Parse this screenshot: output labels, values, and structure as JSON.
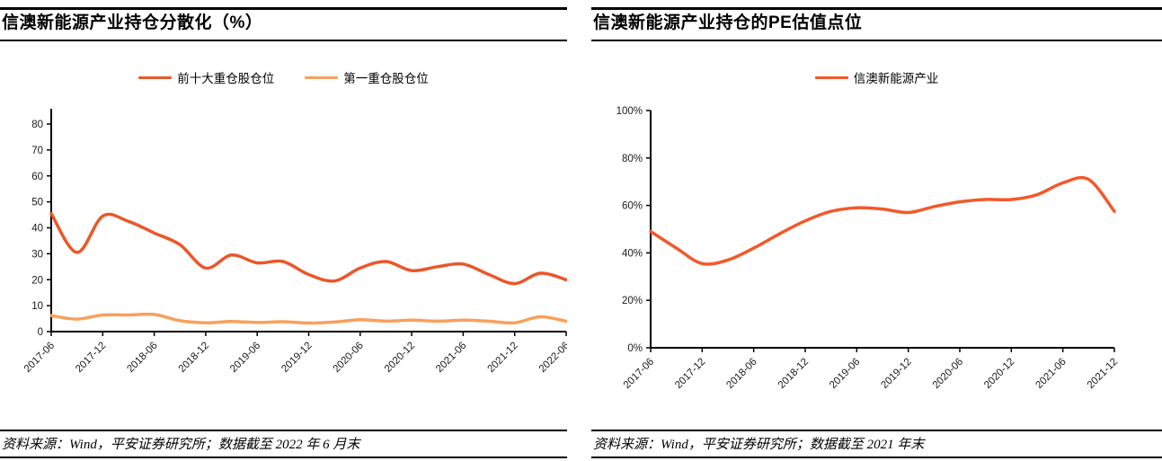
{
  "panels": [
    {
      "source": "资料来源：Wind，平安证券研究所；数据截至 2022 年 6 月末"
    },
    {
      "source": "资料来源：Wind，平安证券研究所；数据截至 2021 年末"
    }
  ],
  "chart_data": [
    {
      "type": "line",
      "title": "信澳新能源产业持仓分散化（%）",
      "categories": [
        "2017-06",
        "2017-09",
        "2017-12",
        "2018-03",
        "2018-06",
        "2018-09",
        "2018-12",
        "2019-03",
        "2019-06",
        "2019-09",
        "2019-12",
        "2020-03",
        "2020-06",
        "2020-09",
        "2020-12",
        "2021-03",
        "2021-06",
        "2021-09",
        "2021-12",
        "2022-03",
        "2022-06"
      ],
      "series": [
        {
          "name": "前十大重仓股仓位",
          "color": "#EA572B",
          "values": [
            45.5,
            30.5,
            44.5,
            42.5,
            38,
            33.5,
            24.5,
            29.5,
            26.5,
            27,
            22,
            19.5,
            24.5,
            27,
            23.5,
            25,
            26,
            22,
            18.5,
            22.5,
            20
          ]
        },
        {
          "name": "第一重仓股仓位",
          "color": "#F9A05B",
          "values": [
            6.2,
            4.8,
            6.4,
            6.4,
            6.6,
            4.2,
            3.4,
            3.9,
            3.5,
            3.8,
            3.3,
            3.7,
            4.6,
            4.0,
            4.4,
            4.0,
            4.4,
            4.0,
            3.4,
            5.7,
            4.0
          ]
        }
      ],
      "ylim": [
        0,
        80
      ],
      "y_ticks": [
        0,
        10,
        20,
        30,
        40,
        50,
        60,
        70,
        80
      ],
      "y_tick_labels": [
        "0",
        "10",
        "20",
        "30",
        "40",
        "50",
        "60",
        "70",
        "80"
      ],
      "x_tick_every": 2,
      "grid": false,
      "legend_position": "top",
      "smooth": true
    },
    {
      "type": "line",
      "title": "信澳新能源产业持仓的PE估值点位",
      "categories": [
        "2017-06",
        "2017-09",
        "2017-12",
        "2018-03",
        "2018-06",
        "2018-09",
        "2018-12",
        "2019-03",
        "2019-06",
        "2019-09",
        "2019-12",
        "2020-03",
        "2020-06",
        "2020-09",
        "2020-12",
        "2021-03",
        "2021-06",
        "2021-09",
        "2021-12"
      ],
      "series": [
        {
          "name": "信澳新能源产业",
          "color": "#F4582A",
          "values": [
            49,
            42,
            35.5,
            37,
            42,
            48,
            53.5,
            57.5,
            59,
            58.5,
            57,
            59.5,
            61.5,
            62.5,
            62.5,
            64.5,
            69.5,
            71,
            57.5
          ]
        }
      ],
      "ylim": [
        0,
        100
      ],
      "y_ticks": [
        0,
        20,
        40,
        60,
        80,
        100
      ],
      "y_tick_labels": [
        "0%",
        "20%",
        "40%",
        "60%",
        "80%",
        "100%"
      ],
      "x_tick_every": 2,
      "grid": false,
      "legend_position": "top",
      "smooth": true
    }
  ]
}
